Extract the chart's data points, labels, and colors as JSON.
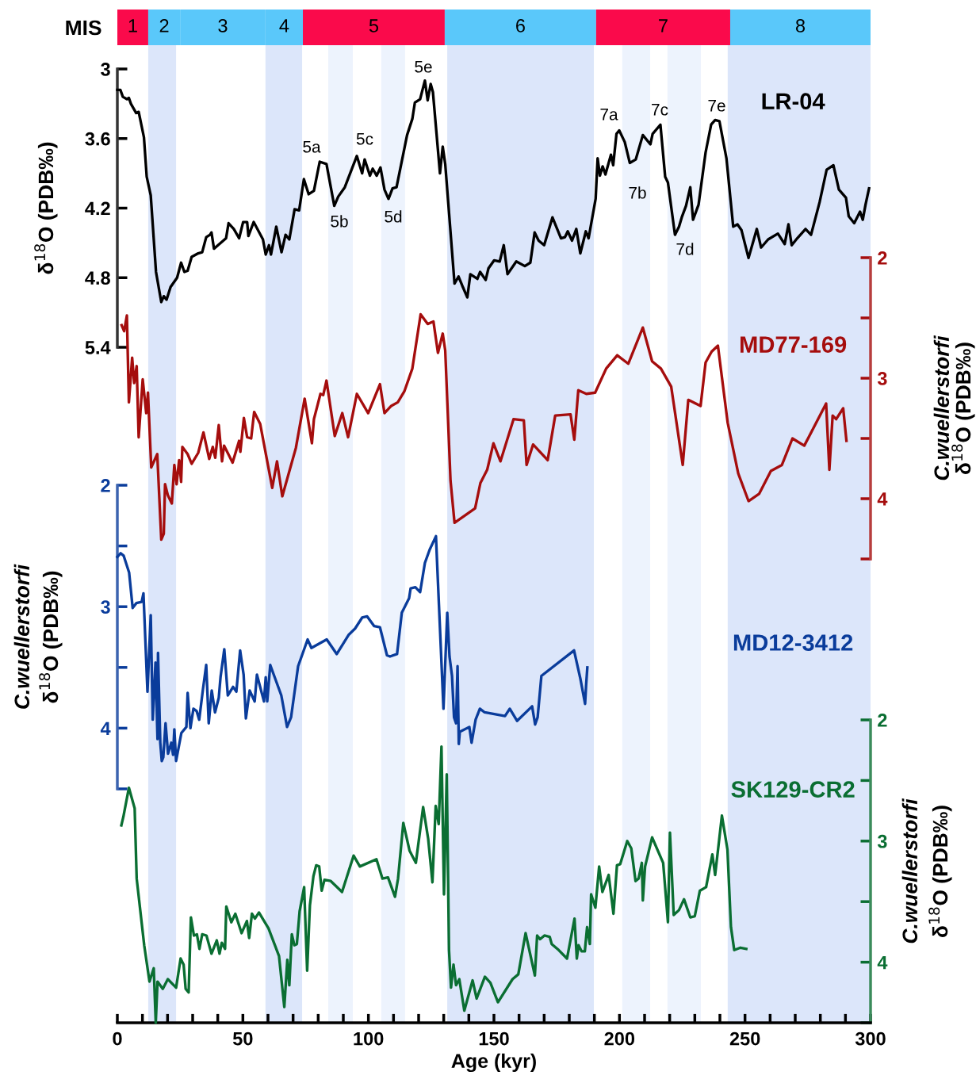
{
  "chart_data": [
    {
      "type": "bar",
      "orientation": "horizontal",
      "stacked": true,
      "tick_labels": "y",
      "categories": [
        "MIS"
      ],
      "xlim": [
        0,
        300
      ],
      "series": [
        {
          "name": "1",
          "color": "#fa0a4b",
          "values": [
            12.3
          ]
        },
        {
          "name": "2",
          "color": "#5ac8fa",
          "values": [
            12.7
          ]
        },
        {
          "name": "3",
          "color": "#5ac8fa",
          "values": [
            34
          ]
        },
        {
          "name": "4",
          "color": "#5ac8fa",
          "values": [
            14.9
          ]
        },
        {
          "name": "5",
          "color": "#fa0a4b",
          "values": [
            56.5
          ]
        },
        {
          "name": "6",
          "color": "#5ac8fa",
          "values": [
            60.3
          ]
        },
        {
          "name": "7",
          "color": "#fa0a4b",
          "values": [
            53.4
          ]
        },
        {
          "name": "8",
          "color": "#5ac8fa",
          "values": [
            55.9
          ]
        }
      ]
    },
    {
      "type": "line",
      "tick_labels": "y",
      "ylabel": "δ$^{18}$O (PDB‰)",
      "xlim": [
        0,
        300
      ],
      "ylim": [
        5.4,
        3
      ],
      "yticks": [
        3,
        3.6,
        4.2,
        4.8,
        5.4
      ],
      "series": [
        {
          "name": "LR-04",
          "color": "#000000",
          "x": [
            0,
            1.2,
            2.2,
            3.8,
            4.6,
            5.4,
            7.5,
            8.5,
            10.6,
            11.7,
            13.3,
            15.4,
            17.5,
            18.5,
            19.6,
            21.2,
            23.8,
            25.4,
            26.7,
            28.0,
            29.6,
            32.2,
            33.8,
            35.4,
            36.9,
            37.5,
            38.5,
            40.1,
            43.3,
            44.3,
            46.4,
            48.5,
            50.1,
            51.7,
            52.2,
            54.3,
            58.0,
            59.1,
            60.4,
            61.2,
            63.3,
            65.4,
            67.0,
            68.5,
            70.6,
            72.4,
            74.3,
            76.2,
            78.3,
            80.6,
            83.3,
            86.4,
            88.0,
            90.6,
            95.4,
            97.5,
            98.5,
            100.6,
            101.7,
            103.3,
            104.8,
            106.4,
            108.0,
            109.6,
            111.2,
            115.4,
            117.5,
            118.5,
            120.6,
            122.5,
            123.6,
            124.8,
            125.7,
            128.5,
            129.6,
            130.6,
            134.3,
            135.9,
            137.4,
            139.4,
            140.6,
            143.4,
            144.5,
            146.7,
            147.8,
            150.1,
            152.3,
            153.9,
            155.4,
            158.9,
            162.3,
            164.5,
            166.2,
            167.8,
            170.0,
            173.3,
            176.7,
            178.3,
            179.4,
            181.1,
            182.8,
            184.4,
            186.6,
            187.7,
            190.5,
            191.3,
            192.2,
            193.3,
            194.4,
            196.6,
            197.5,
            198.8,
            199.9,
            202.1,
            204.1,
            206.5,
            209.3,
            212.3,
            213.2,
            216.3,
            218.2,
            219.3,
            222.1,
            223.7,
            224.8,
            226.5,
            228.2,
            229.3,
            231.5,
            234.3,
            236.5,
            238.1,
            239.8,
            242.6,
            245.3,
            247.0,
            248.6,
            251.4,
            254.7,
            256.4,
            259.2,
            263.1,
            265.8,
            267.3,
            268.6,
            270.8,
            274.1,
            276.3,
            279.7,
            282.5,
            285.2,
            287.4,
            290.2,
            291.3,
            293.5,
            295.8,
            296.9,
            298.0,
            299.4
          ],
          "values": [
            3.18,
            3.18,
            3.24,
            3.26,
            3.25,
            3.3,
            3.38,
            3.37,
            3.59,
            3.93,
            4.09,
            4.75,
            5.01,
            4.96,
            4.99,
            4.88,
            4.8,
            4.67,
            4.75,
            4.74,
            4.62,
            4.59,
            4.58,
            4.45,
            4.43,
            4.41,
            4.55,
            4.52,
            4.46,
            4.33,
            4.38,
            4.46,
            4.32,
            4.32,
            4.44,
            4.32,
            4.47,
            4.6,
            4.52,
            4.6,
            4.36,
            4.58,
            4.43,
            4.47,
            4.21,
            4.22,
            3.95,
            4.08,
            4.05,
            3.8,
            3.82,
            4.18,
            4.1,
            4.02,
            3.75,
            3.9,
            3.78,
            3.92,
            3.86,
            3.92,
            3.85,
            4.04,
            4.12,
            4.03,
            4.02,
            3.57,
            3.43,
            3.29,
            3.26,
            3.1,
            3.27,
            3.13,
            3.2,
            3.9,
            3.67,
            3.82,
            4.85,
            4.79,
            4.87,
            4.97,
            4.77,
            4.81,
            4.75,
            4.82,
            4.72,
            4.65,
            4.66,
            4.52,
            4.77,
            4.66,
            4.7,
            4.67,
            4.41,
            4.48,
            4.52,
            4.28,
            4.46,
            4.45,
            4.4,
            4.48,
            4.38,
            4.59,
            4.4,
            4.46,
            4.12,
            3.77,
            3.92,
            3.84,
            3.91,
            3.74,
            3.83,
            3.56,
            3.53,
            3.63,
            3.81,
            3.78,
            3.57,
            3.65,
            3.56,
            3.48,
            3.93,
            3.98,
            4.43,
            4.36,
            4.28,
            4.18,
            4.02,
            4.3,
            4.17,
            3.72,
            3.48,
            3.44,
            3.45,
            3.77,
            4.36,
            4.34,
            4.39,
            4.63,
            4.38,
            4.54,
            4.47,
            4.42,
            4.51,
            4.34,
            4.52,
            4.46,
            4.38,
            4.43,
            4.15,
            3.87,
            3.83,
            4.04,
            4.11,
            4.27,
            4.33,
            4.23,
            4.3,
            4.17,
            4.03
          ]
        }
      ],
      "annotations": [
        "5a",
        "5b",
        "5c",
        "5d",
        "5e",
        "7a",
        "7b",
        "7c",
        "7d",
        "7e"
      ]
    },
    {
      "type": "line",
      "tick_labels": "y",
      "ylabel": "C.wuellerstorfi\nδ$^{18}$O (PDB‰)",
      "xlim": [
        0,
        300
      ],
      "ylim": [
        4.5,
        2
      ],
      "yticks": [
        2,
        {
          "value": 2.5,
          "label": null
        },
        3,
        {
          "value": 3.5,
          "label": null
        },
        4,
        {
          "value": 4.5,
          "label": null
        }
      ],
      "series": [
        {
          "name": "MD77-169",
          "color": "#a50d0d",
          "x": [
            1.7,
            2.7,
            3.8,
            4.6,
            5.9,
            6.7,
            7.7,
            8.5,
            10.1,
            11.5,
            12.2,
            13.5,
            15.9,
            17.5,
            18.5,
            19.0,
            20.1,
            21.7,
            22.7,
            23.6,
            24.6,
            25.4,
            25.9,
            28.0,
            29.6,
            32.2,
            34.3,
            36.6,
            38.0,
            39.0,
            40.4,
            41.7,
            42.5,
            45.9,
            48.5,
            49.0,
            50.4,
            51.7,
            53.3,
            54.5,
            56.9,
            61.7,
            63.6,
            65.7,
            71.1,
            74.6,
            77.5,
            78.3,
            80.9,
            82.0,
            83.3,
            86.6,
            89.6,
            91.9,
            95.4,
            99.9,
            104.6,
            106.4,
            109.1,
            111.7,
            114.3,
            117.5,
            120.8,
            123.6,
            125.9,
            127.7,
            129.6,
            130.6,
            132.7,
            134.3,
            142.5,
            144.6,
            147.3,
            149.8,
            152.6,
            157.8,
            161.9,
            163.0,
            165.6,
            171.4,
            174.4,
            180.5,
            182.0,
            183.6,
            186.8,
            190.3,
            194.7,
            199.1,
            203.5,
            209.3,
            213.0,
            216.5,
            220.6,
            225.2,
            227.4,
            232.3,
            234.3,
            236.7,
            239.2,
            243.1,
            247.3,
            251.4,
            255.6,
            260.3,
            264.7,
            268.9,
            273.6,
            282.3,
            283.6,
            284.9,
            286.3,
            289.1,
            290.4
          ],
          "values": [
            2.56,
            2.61,
            2.48,
            3.2,
            2.83,
            3.04,
            2.9,
            3.49,
            3.01,
            3.29,
            3.12,
            3.74,
            3.63,
            4.34,
            4.29,
            3.88,
            3.97,
            4.04,
            3.72,
            3.88,
            3.68,
            3.86,
            3.57,
            3.63,
            3.71,
            3.62,
            3.45,
            3.67,
            3.57,
            3.66,
            3.39,
            3.69,
            3.56,
            3.7,
            3.52,
            3.61,
            3.33,
            3.49,
            3.5,
            3.28,
            3.38,
            3.91,
            3.69,
            3.98,
            3.58,
            3.17,
            3.54,
            3.34,
            3.13,
            3.14,
            3.02,
            3.48,
            3.29,
            3.49,
            3.13,
            3.29,
            3.05,
            3.29,
            3.23,
            3.2,
            3.11,
            2.92,
            2.47,
            2.55,
            2.53,
            2.79,
            2.63,
            2.77,
            3.85,
            4.2,
            4.08,
            3.87,
            3.76,
            3.54,
            3.69,
            3.34,
            3.35,
            3.72,
            3.55,
            3.68,
            3.31,
            3.3,
            3.51,
            3.1,
            3.13,
            3.12,
            2.92,
            2.81,
            2.88,
            2.58,
            2.86,
            2.92,
            3.07,
            3.72,
            3.18,
            3.23,
            2.87,
            2.78,
            2.73,
            3.37,
            3.79,
            4.02,
            3.96,
            3.77,
            3.72,
            3.5,
            3.56,
            3.21,
            3.76,
            3.31,
            3.34,
            3.25,
            3.52
          ]
        }
      ]
    },
    {
      "type": "line",
      "tick_labels": "y",
      "ylabel": "C.wuellerstorfi\nδ$^{18}$O (PDB‰)",
      "xlim": [
        0,
        300
      ],
      "ylim": [
        4.5,
        2
      ],
      "yticks": [
        2,
        {
          "value": 2.5,
          "label": null
        },
        3,
        {
          "value": 3.5,
          "label": null
        },
        4,
        {
          "value": 4.5,
          "label": null
        }
      ],
      "series": [
        {
          "name": "MD12-3412",
          "color": "#0a3c9b",
          "x": [
            0.0,
            1.3,
            2.5,
            4.7,
            6.1,
            7.6,
            9.7,
            10.4,
            12.0,
            13.3,
            14.1,
            15.2,
            16.0,
            16.2,
            17.1,
            17.7,
            18.3,
            19.2,
            20.2,
            21.5,
            22.2,
            22.7,
            23.4,
            25.5,
            27.5,
            28.0,
            29.1,
            30.3,
            31.6,
            32.6,
            34.1,
            35.4,
            36.4,
            37.6,
            38.9,
            40.4,
            41.1,
            42.6,
            44.0,
            46.1,
            47.4,
            48.9,
            50.3,
            51.2,
            52.7,
            54.7,
            55.6,
            58.4,
            59.1,
            59.7,
            60.9,
            65.3,
            67.6,
            69.2,
            72.0,
            75.8,
            77.3,
            83.4,
            87.4,
            92.2,
            94.7,
            97.5,
            99.5,
            102.3,
            104.6,
            107.4,
            108.6,
            111.4,
            113.3,
            116.2,
            116.8,
            118.7,
            120.6,
            122.5,
            124.4,
            126.9,
            129.9,
            131.4,
            132.3,
            133.3,
            134.1,
            134.9,
            135.5,
            136.0,
            136.4,
            140.2,
            141.1,
            142.7,
            144.4,
            146.3,
            154.4,
            156.3,
            159.2,
            165.2,
            166.4,
            167.4,
            168.9,
            181.9,
            184.4,
            186.3,
            186.7,
            187.2
          ],
          "values": [
            2.59,
            2.56,
            2.58,
            2.72,
            3.01,
            2.97,
            2.96,
            2.89,
            3.7,
            3.07,
            3.93,
            3.46,
            4.09,
            3.38,
            4.12,
            4.27,
            4.24,
            3.96,
            4.21,
            4.12,
            4.22,
            4.01,
            4.27,
            4.04,
            3.99,
            3.71,
            4.0,
            3.84,
            3.86,
            3.93,
            3.68,
            3.48,
            3.96,
            3.69,
            3.87,
            3.75,
            3.58,
            3.35,
            3.73,
            3.66,
            3.7,
            3.36,
            3.56,
            3.92,
            3.69,
            3.78,
            3.56,
            3.78,
            3.58,
            3.78,
            3.48,
            3.73,
            3.99,
            3.91,
            3.49,
            3.27,
            3.34,
            3.27,
            3.39,
            3.23,
            3.18,
            3.09,
            3.08,
            3.16,
            3.17,
            3.4,
            3.41,
            3.39,
            3.05,
            2.93,
            2.85,
            2.84,
            2.88,
            2.64,
            2.53,
            2.42,
            3.84,
            3.05,
            3.41,
            3.57,
            3.91,
            3.96,
            3.49,
            4.13,
            4.03,
            3.99,
            4.12,
            3.93,
            3.84,
            3.87,
            3.9,
            3.84,
            3.94,
            3.82,
            3.97,
            3.91,
            3.57,
            3.36,
            3.59,
            3.8,
            3.65,
            3.5
          ]
        }
      ]
    },
    {
      "type": "line",
      "xlabel": "Age (kyr)",
      "ylabel": "C.wuellerstorfi\nδ$^{18}$O (PDB‰)",
      "xlim": [
        0,
        300
      ],
      "xticks": [
        0,
        {
          "value": 10,
          "label": null
        },
        {
          "value": 20,
          "label": null
        },
        {
          "value": 30,
          "label": null
        },
        {
          "value": 40,
          "label": null
        },
        50,
        {
          "value": 60,
          "label": null
        },
        {
          "value": 70,
          "label": null
        },
        {
          "value": 80,
          "label": null
        },
        {
          "value": 90,
          "label": null
        },
        100,
        {
          "value": 110,
          "label": null
        },
        {
          "value": 120,
          "label": null
        },
        {
          "value": 130,
          "label": null
        },
        {
          "value": 140,
          "label": null
        },
        150,
        {
          "value": 160,
          "label": null
        },
        {
          "value": 170,
          "label": null
        },
        {
          "value": 180,
          "label": null
        },
        {
          "value": 190,
          "label": null
        },
        200,
        {
          "value": 210,
          "label": null
        },
        {
          "value": 220,
          "label": null
        },
        {
          "value": 230,
          "label": null
        },
        {
          "value": 240,
          "label": null
        },
        250,
        {
          "value": 260,
          "label": null
        },
        {
          "value": 270,
          "label": null
        },
        {
          "value": 280,
          "label": null
        },
        {
          "value": 290,
          "label": null
        },
        300
      ],
      "ylim": [
        4.5,
        2
      ],
      "yticks": [
        2,
        {
          "value": 2.5,
          "label": null
        },
        3,
        {
          "value": 3.5,
          "label": null
        },
        4,
        {
          "value": 4.5,
          "label": null
        }
      ],
      "series": [
        {
          "name": "SK129-CR2",
          "color": "#0a6e32",
          "x": [
            1.6,
            2.4,
            4.6,
            6.9,
            7.7,
            10.7,
            12.8,
            14.5,
            15.3,
            16.0,
            18.1,
            20.1,
            23.4,
            25.2,
            26.4,
            27.2,
            28.4,
            29.3,
            30.5,
            31.7,
            32.7,
            33.8,
            35.5,
            37.5,
            39.6,
            40.7,
            41.6,
            42.9,
            43.4,
            45.4,
            47.0,
            49.5,
            51.6,
            52.5,
            53.6,
            54.8,
            56.4,
            60.2,
            64.4,
            66.5,
            67.7,
            68.5,
            69.5,
            70.5,
            71.5,
            72.6,
            74.4,
            75.6,
            76.7,
            78.1,
            79.2,
            80.4,
            81.4,
            82.5,
            85.0,
            89.5,
            94.1,
            96.6,
            103.2,
            105.6,
            107.8,
            110.6,
            111.8,
            113.9,
            116.4,
            118.9,
            121.8,
            123.8,
            125.5,
            126.8,
            128.0,
            129.1,
            130.1,
            131.2,
            132.1,
            132.9,
            133.9,
            134.9,
            136.2,
            138.2,
            141.5,
            143.1,
            146.4,
            148.6,
            151.6,
            157.4,
            159.7,
            162.6,
            166.3,
            167.2,
            168.4,
            170.1,
            172.2,
            173.0,
            175.8,
            179.1,
            182.1,
            183.0,
            183.7,
            184.9,
            186.2,
            187.1,
            188.2,
            188.7,
            190.4,
            191.9,
            193.2,
            195.7,
            197.6,
            199.0,
            200.3,
            203.1,
            204.7,
            206.4,
            207.6,
            208.9,
            209.3,
            210.2,
            213.0,
            217.4,
            219.3,
            220.1,
            221.6,
            223.7,
            225.7,
            228.2,
            230.0,
            232.0,
            234.5,
            237.0,
            238.1,
            240.8,
            243.0,
            244.4,
            245.7,
            248.2,
            250.5
          ],
          "values": [
            2.87,
            2.8,
            2.56,
            2.73,
            3.31,
            3.86,
            4.16,
            4.05,
            4.5,
            4.16,
            4.22,
            4.14,
            4.21,
            3.97,
            4.02,
            4.22,
            4.25,
            3.63,
            3.78,
            3.77,
            3.89,
            3.77,
            3.78,
            3.93,
            3.82,
            3.93,
            3.84,
            3.89,
            3.54,
            3.67,
            3.6,
            3.76,
            3.66,
            3.8,
            3.6,
            3.64,
            3.59,
            3.72,
            3.95,
            4.37,
            3.98,
            4.19,
            3.77,
            3.86,
            3.85,
            3.58,
            3.38,
            4.07,
            3.53,
            3.29,
            3.2,
            3.21,
            3.41,
            3.32,
            3.33,
            3.42,
            3.12,
            3.21,
            3.15,
            3.31,
            3.3,
            3.46,
            3.31,
            2.85,
            3.08,
            3.18,
            2.72,
            2.98,
            3.34,
            2.71,
            2.86,
            2.22,
            3.44,
            2.45,
            3.9,
            4.21,
            4.02,
            4.19,
            4.14,
            4.4,
            4.15,
            4.3,
            4.12,
            4.17,
            4.33,
            4.14,
            4.1,
            3.76,
            4.11,
            3.78,
            3.81,
            3.78,
            3.79,
            3.85,
            3.9,
            3.97,
            3.64,
            3.97,
            3.86,
            3.91,
            3.91,
            3.71,
            3.85,
            3.44,
            3.55,
            3.21,
            3.42,
            3.28,
            3.6,
            3.2,
            3.19,
            3.0,
            3.06,
            3.33,
            3.31,
            3.18,
            3.49,
            3.21,
            2.97,
            3.18,
            3.67,
            2.93,
            3.61,
            3.57,
            3.48,
            3.63,
            3.62,
            3.41,
            3.38,
            3.11,
            3.28,
            2.79,
            3.07,
            3.71,
            3.9,
            3.88,
            3.89
          ]
        }
      ],
      "bands": [
        {
          "axis": "x",
          "from": 12.3,
          "to": 23.4,
          "color": "#dce6fa"
        },
        {
          "axis": "x",
          "from": 59,
          "to": 73.6,
          "color": "#dce6fa"
        },
        {
          "axis": "x",
          "from": 131.4,
          "to": 189.8,
          "color": "#dce6fa"
        },
        {
          "axis": "x",
          "from": 243.1,
          "to": 300,
          "color": "#dce6fa"
        },
        {
          "axis": "x",
          "from": 84,
          "to": 93.8,
          "color": "#edf3fd"
        },
        {
          "axis": "x",
          "from": 105.1,
          "to": 114.6,
          "color": "#edf3fd"
        },
        {
          "axis": "x",
          "from": 201.1,
          "to": 212.2,
          "color": "#edf3fd"
        },
        {
          "axis": "x",
          "from": 219.1,
          "to": 232.4,
          "color": "#edf3fd"
        }
      ]
    }
  ]
}
